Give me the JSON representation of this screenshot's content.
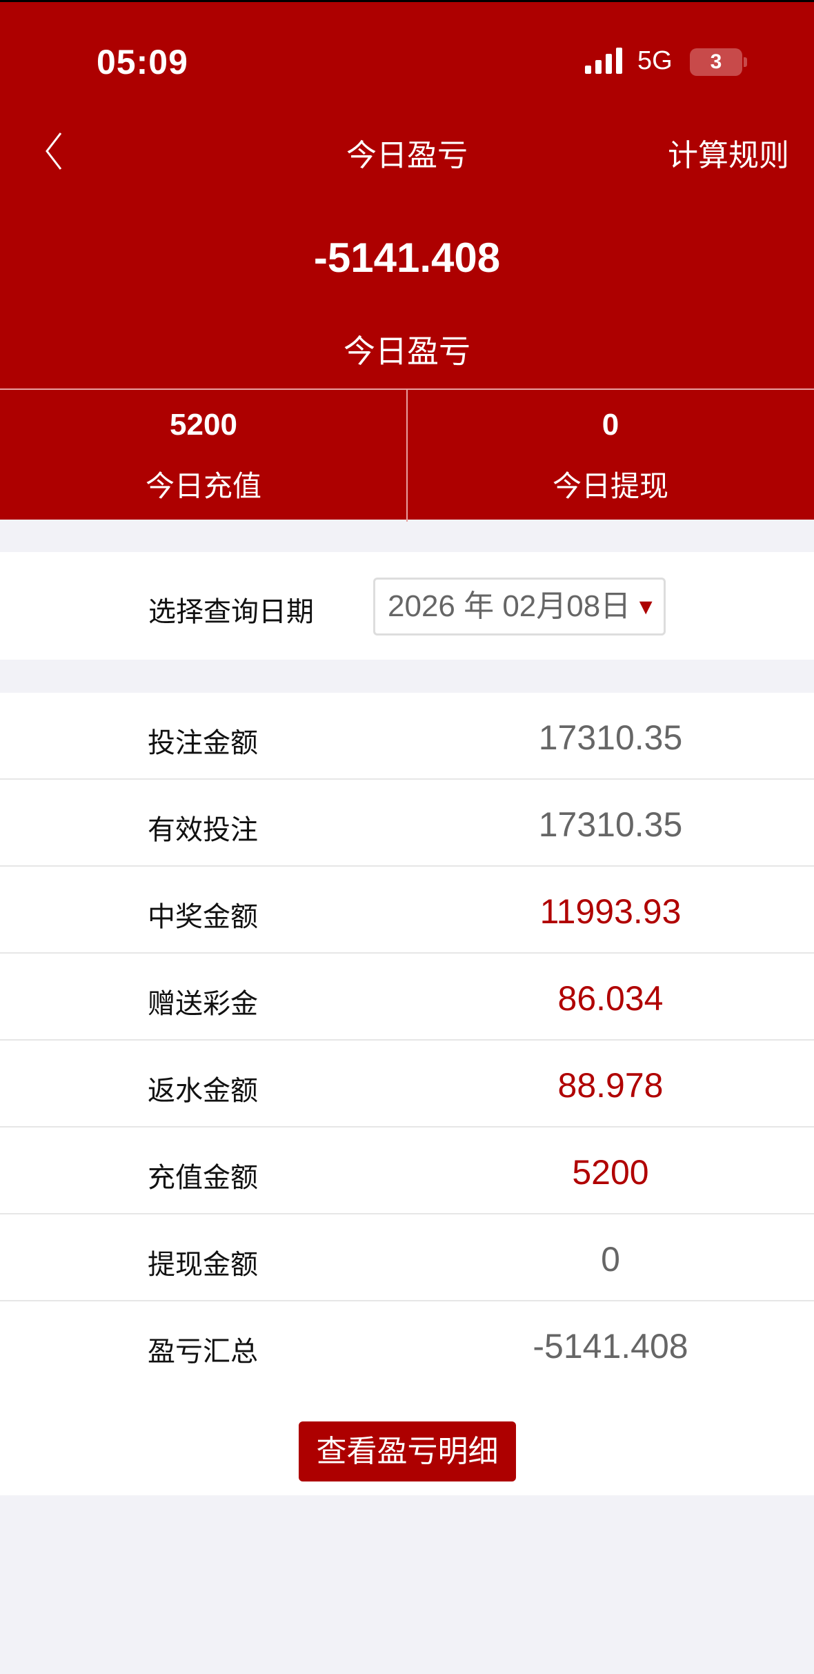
{
  "status_bar": {
    "time": "05:09",
    "network": "5G",
    "battery": "3"
  },
  "nav": {
    "title": "今日盈亏",
    "right_link": "计算规则"
  },
  "summary": {
    "value": "-5141.408",
    "label": "今日盈亏"
  },
  "stats": [
    {
      "value": "5200",
      "label": "今日充值"
    },
    {
      "value": "0",
      "label": "今日提现"
    }
  ],
  "date_query": {
    "label": "选择查询日期",
    "value": "2026 年 02月08日"
  },
  "rows": [
    {
      "label": "投注金额",
      "value": "17310.35",
      "highlight": false
    },
    {
      "label": "有效投注",
      "value": "17310.35",
      "highlight": false
    },
    {
      "label": "中奖金额",
      "value": "11993.93",
      "highlight": true
    },
    {
      "label": "赠送彩金",
      "value": "86.034",
      "highlight": true
    },
    {
      "label": "返水金额",
      "value": "88.978",
      "highlight": true
    },
    {
      "label": "充值金额",
      "value": "5200",
      "highlight": true
    },
    {
      "label": "提现金额",
      "value": "0",
      "highlight": false
    },
    {
      "label": "盈亏汇总",
      "value": "-5141.408",
      "highlight": false
    }
  ],
  "detail_button": "查看盈亏明细",
  "colors": {
    "brand": "#ad0000",
    "highlight": "#b00000",
    "muted": "#666666",
    "background": "#f2f2f7"
  }
}
